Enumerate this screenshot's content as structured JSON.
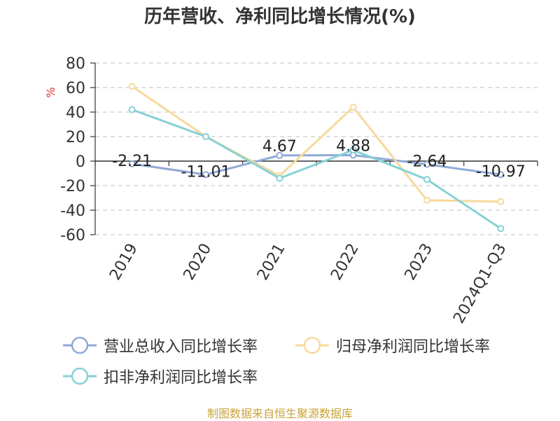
{
  "chart_data": {
    "type": "line",
    "title": "历年营收、净利同比增长情况(%)",
    "ylabel": "%",
    "ylim": [
      -60,
      80
    ],
    "yticks": [
      80,
      60,
      40,
      20,
      0,
      -20,
      -40,
      -60
    ],
    "categories": [
      "2019",
      "2020",
      "2021",
      "2022",
      "2023",
      "2024Q1-Q3"
    ],
    "grid": true,
    "legend_position": "bottom",
    "series": [
      {
        "name": "营业总收入同比增长率",
        "color": "#8fa9d6",
        "values": [
          -2.21,
          -11.01,
          4.67,
          4.88,
          -2.64,
          -10.97
        ],
        "labels": [
          "-2.21",
          "-11.01",
          "4.67",
          "4.88",
          "-2.64",
          "-10.97"
        ]
      },
      {
        "name": "归母净利润同比增长率",
        "color": "#f8d99c",
        "values": [
          61,
          20,
          -12,
          44,
          -32,
          -33
        ]
      },
      {
        "name": "扣非净利润同比增长率",
        "color": "#86d1d6",
        "values": [
          42,
          20,
          -14,
          9,
          -15,
          -55
        ]
      }
    ]
  },
  "source": "制图数据来自恒生聚源数据库"
}
